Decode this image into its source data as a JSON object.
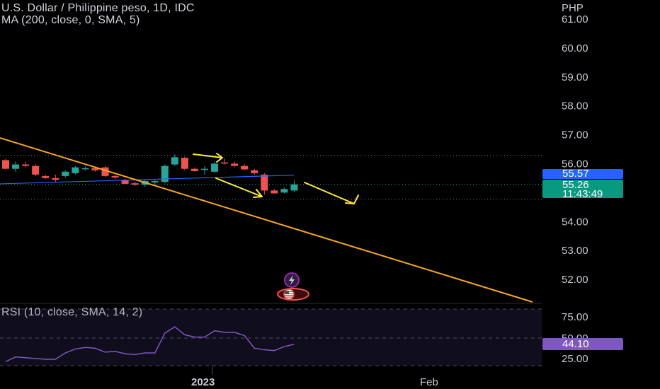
{
  "header": {
    "title": "U.S. Dollar / Philippine peso, 1D, IDC",
    "indicator": "MA (200, close, 0, SMA, 5)"
  },
  "price_axis": {
    "currency": "PHP",
    "ticks": [
      "61.00",
      "60.00",
      "59.00",
      "58.00",
      "57.00",
      "56.00",
      "54.00",
      "53.00",
      "52.00"
    ],
    "ma_value": "55.57",
    "last_price": "55.26",
    "countdown": "11:43:49"
  },
  "rsi": {
    "label": "RSI (10, close, SMA, 14, 2)",
    "ticks": [
      "75.00",
      "50.00",
      "25.00"
    ],
    "value": "44.10"
  },
  "time_axis": {
    "labels": [
      "2023",
      "Feb"
    ]
  },
  "colors": {
    "up": "#26a69a",
    "down": "#ef5350",
    "ma_line": "#2962ff",
    "trend_line": "#f5a623",
    "arrow": "#ffeb3b",
    "rsi_line": "#7e57c2",
    "last_price_tag": "#089981",
    "ma_tag": "#2962ff",
    "rsi_tag": "#7e57c2"
  },
  "chart_data": {
    "type": "candlestick",
    "candles": [
      {
        "o": 56.1,
        "h": 56.15,
        "l": 55.78,
        "c": 55.8
      },
      {
        "o": 55.8,
        "h": 56.05,
        "l": 55.7,
        "c": 55.95
      },
      {
        "o": 55.95,
        "h": 56.05,
        "l": 55.85,
        "c": 55.9
      },
      {
        "o": 55.9,
        "h": 55.95,
        "l": 55.55,
        "c": 55.6
      },
      {
        "o": 55.55,
        "h": 55.6,
        "l": 55.45,
        "c": 55.48
      },
      {
        "o": 55.48,
        "h": 55.6,
        "l": 55.35,
        "c": 55.42
      },
      {
        "o": 55.55,
        "h": 55.75,
        "l": 55.5,
        "c": 55.7
      },
      {
        "o": 55.65,
        "h": 55.9,
        "l": 55.6,
        "c": 55.85
      },
      {
        "o": 55.8,
        "h": 55.88,
        "l": 55.75,
        "c": 55.82
      },
      {
        "o": 55.82,
        "h": 55.88,
        "l": 55.7,
        "c": 55.75
      },
      {
        "o": 55.85,
        "h": 55.9,
        "l": 55.52,
        "c": 55.55
      },
      {
        "o": 55.55,
        "h": 55.6,
        "l": 55.45,
        "c": 55.5
      },
      {
        "o": 55.42,
        "h": 55.45,
        "l": 55.25,
        "c": 55.28
      },
      {
        "o": 55.3,
        "h": 55.35,
        "l": 55.2,
        "c": 55.25
      },
      {
        "o": 55.25,
        "h": 55.4,
        "l": 55.18,
        "c": 55.38
      },
      {
        "o": 55.33,
        "h": 55.4,
        "l": 55.25,
        "c": 55.38
      },
      {
        "o": 55.35,
        "h": 55.95,
        "l": 55.3,
        "c": 55.9
      },
      {
        "o": 55.95,
        "h": 56.3,
        "l": 55.9,
        "c": 56.2
      },
      {
        "o": 56.18,
        "h": 56.22,
        "l": 55.75,
        "c": 55.8
      },
      {
        "o": 55.8,
        "h": 55.85,
        "l": 55.7,
        "c": 55.72
      },
      {
        "o": 55.8,
        "h": 55.9,
        "l": 55.6,
        "c": 55.8
      },
      {
        "o": 55.7,
        "h": 56.05,
        "l": 55.65,
        "c": 55.98
      },
      {
        "o": 56.02,
        "h": 56.15,
        "l": 55.95,
        "c": 55.98
      },
      {
        "o": 55.98,
        "h": 56.05,
        "l": 55.85,
        "c": 55.9
      },
      {
        "o": 55.9,
        "h": 55.95,
        "l": 55.75,
        "c": 55.78
      },
      {
        "o": 55.75,
        "h": 55.8,
        "l": 55.6,
        "c": 55.65
      },
      {
        "o": 55.6,
        "h": 55.65,
        "l": 54.9,
        "c": 55.05
      },
      {
        "o": 55.05,
        "h": 55.1,
        "l": 54.95,
        "c": 54.95
      },
      {
        "o": 54.98,
        "h": 55.15,
        "l": 54.95,
        "c": 55.1
      },
      {
        "o": 55.05,
        "h": 55.4,
        "l": 55.0,
        "c": 55.26
      }
    ],
    "ma": {
      "start": 55.28,
      "end": 55.58
    },
    "rsi_series": [
      22,
      28,
      27,
      26,
      25,
      25,
      33,
      38,
      40,
      39,
      34,
      35,
      32,
      31,
      33,
      33,
      58,
      66,
      56,
      53,
      53,
      61,
      59,
      59,
      55,
      39,
      37,
      36,
      41,
      44
    ],
    "price_range": [
      51.5,
      61.5
    ],
    "rsi_range": [
      20,
      80
    ]
  }
}
